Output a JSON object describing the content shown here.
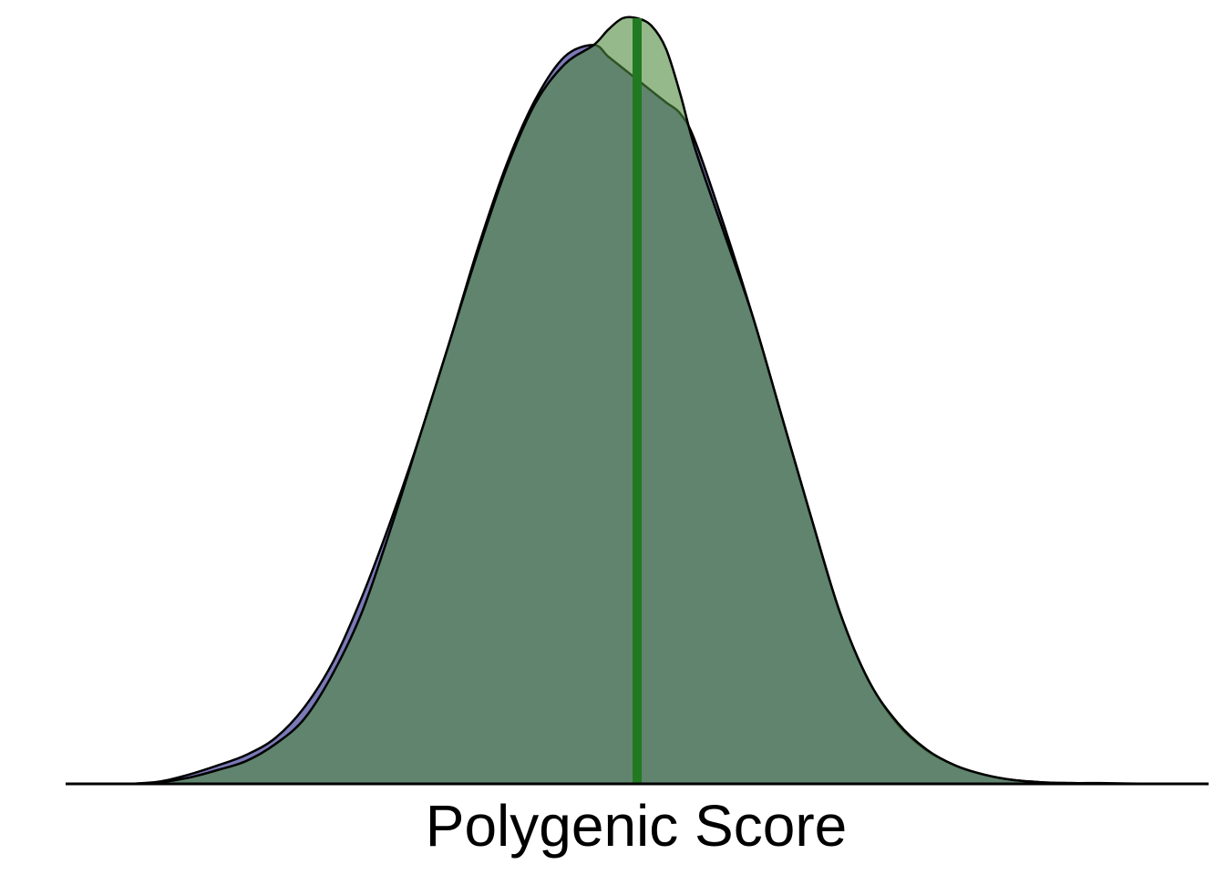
{
  "chart_data": {
    "type": "area",
    "title": "",
    "xlabel": "Polygenic Score",
    "ylabel": "",
    "grid": false,
    "legend": "none",
    "xlim": [
      -3.95,
      3.95
    ],
    "ylim": [
      0,
      1.0
    ],
    "series": [
      {
        "fill": "#6b6bb0",
        "opacity": 0.9,
        "x": [
          -3.5,
          -3.3,
          -3.1,
          -2.9,
          -2.7,
          -2.5,
          -2.3,
          -2.1,
          -1.9,
          -1.7,
          -1.5,
          -1.3,
          -1.1,
          -0.9,
          -0.7,
          -0.5,
          -0.3,
          -0.2,
          -0.1,
          0.0,
          0.1,
          0.2,
          0.3,
          0.4,
          0.6,
          0.8,
          1.0,
          1.2,
          1.4,
          1.6,
          1.8,
          2.0,
          2.2,
          2.4,
          2.6,
          2.8,
          3.0,
          3.2,
          3.4,
          3.6,
          3.7
        ],
        "y": [
          0.0,
          0.003,
          0.012,
          0.024,
          0.038,
          0.06,
          0.1,
          0.16,
          0.245,
          0.345,
          0.455,
          0.575,
          0.7,
          0.81,
          0.895,
          0.95,
          0.965,
          0.95,
          0.935,
          0.92,
          0.905,
          0.89,
          0.875,
          0.84,
          0.73,
          0.61,
          0.48,
          0.35,
          0.225,
          0.135,
          0.078,
          0.044,
          0.024,
          0.012,
          0.005,
          0.002,
          0.001,
          0.001,
          0.0005,
          0.0,
          0.0
        ]
      },
      {
        "fill": "#4f8a3c",
        "opacity": 0.6,
        "x": [
          -3.5,
          -3.3,
          -3.1,
          -2.9,
          -2.7,
          -2.5,
          -2.3,
          -2.1,
          -1.9,
          -1.7,
          -1.5,
          -1.3,
          -1.1,
          -0.9,
          -0.7,
          -0.5,
          -0.3,
          -0.2,
          -0.1,
          0.0,
          0.1,
          0.2,
          0.3,
          0.4,
          0.6,
          0.8,
          1.0,
          1.2,
          1.4,
          1.6,
          1.8,
          2.0,
          2.2,
          2.4,
          2.6,
          2.8,
          3.0,
          3.2,
          3.4,
          3.6,
          3.7
        ],
        "y": [
          0.0,
          0.002,
          0.008,
          0.018,
          0.03,
          0.052,
          0.085,
          0.145,
          0.225,
          0.335,
          0.455,
          0.575,
          0.695,
          0.805,
          0.89,
          0.94,
          0.965,
          0.985,
          1.0,
          1.0,
          0.99,
          0.96,
          0.9,
          0.83,
          0.72,
          0.61,
          0.48,
          0.35,
          0.225,
          0.135,
          0.08,
          0.045,
          0.024,
          0.012,
          0.005,
          0.002,
          0.001,
          0.0005,
          0.0,
          0.0,
          0.0
        ]
      }
    ],
    "vline": {
      "x": 0.0,
      "color": "#217a21"
    }
  }
}
